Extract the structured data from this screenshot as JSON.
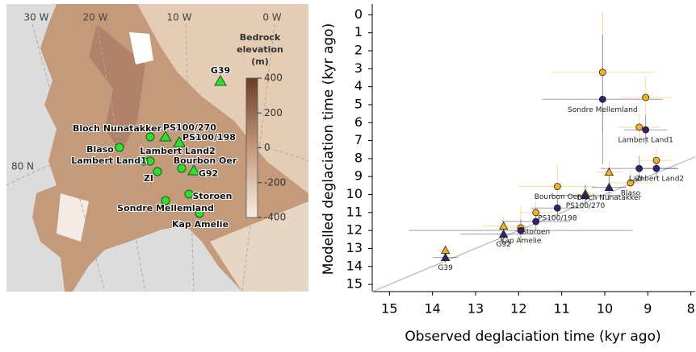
{
  "map": {
    "lon_labels": [
      "30 W",
      "20 W",
      "10 W",
      "0 W"
    ],
    "lat_label": "80 N",
    "colorbar": {
      "title": [
        "Bedrock",
        "elevation",
        "(m)"
      ],
      "lim": [
        -400,
        400
      ],
      "ticks": [
        400,
        200,
        0,
        -200,
        -400
      ]
    },
    "sites": [
      "G39",
      "Bloch Nunatakker",
      "PS100/270",
      "PS100/198",
      "Blaso",
      "Lambert Land2",
      "Lambert Land1",
      "Bourbon Oer",
      "G92",
      "ZI",
      "Storoen",
      "Sondre Mellemland",
      "Kap Amelie"
    ]
  },
  "chart_data": {
    "type": "scatter",
    "xlabel": "Observed deglaciation time (kyr ago)",
    "ylabel": "Modelled deglaciation time (kyr ago)",
    "xlim": [
      15.4,
      7.9
    ],
    "ylim": [
      15.4,
      -0.6
    ],
    "xticks": [
      15,
      14,
      13,
      12,
      11,
      10,
      9,
      8
    ],
    "yticks": [
      0,
      1,
      2,
      3,
      4,
      5,
      6,
      7,
      8,
      9,
      10,
      11,
      12,
      13,
      14,
      15
    ],
    "grid": false,
    "diagonal": true,
    "x": [
      13.7,
      12.35,
      11.95,
      11.6,
      11.1,
      11.1,
      10.45,
      9.9,
      9.4,
      8.8,
      9.2,
      9.05,
      10.05
    ],
    "point_labels": [
      "G39",
      "G92",
      "Kap Amelie",
      "Storoen",
      "Bourbon Oer",
      "PS100/198",
      "PS100/270",
      "Bloch Nunatakker",
      "Blaso",
      "Lambert Land2",
      "ZI",
      "Lambert Land1",
      "Sondre Mellemland"
    ],
    "markers": [
      "triangle",
      "triangle",
      "circle",
      "circle",
      "circle",
      "circle",
      "triangle",
      "triangle",
      "circle",
      "circle",
      "circle",
      "circle",
      "circle"
    ],
    "series": [
      {
        "color": "#f2b31c",
        "values": [
          13.1,
          11.75,
          11.85,
          11.0,
          9.55,
          null,
          9.95,
          8.75,
          9.35,
          8.1,
          6.25,
          4.6,
          3.2
        ],
        "xerr": [
          0.2,
          0.5,
          0.3,
          0.4,
          0.9,
          null,
          0.3,
          0.3,
          0.5,
          0.4,
          0.5,
          0.6,
          1.2
        ],
        "yerr": [
          0.3,
          0.6,
          1.2,
          0.6,
          1.2,
          null,
          0.5,
          0.6,
          0.7,
          0.7,
          1.0,
          1.2,
          3.4
        ]
      },
      {
        "color": "#35206e",
        "values": [
          13.5,
          12.2,
          12.0,
          11.5,
          null,
          10.75,
          10.05,
          9.6,
          null,
          8.55,
          8.55,
          6.4,
          4.7
        ],
        "xerr": [
          0.3,
          1.0,
          2.6,
          0.8,
          null,
          0.6,
          0.8,
          0.4,
          null,
          0.5,
          0.9,
          0.5,
          1.4
        ],
        "yerr": [
          0.3,
          0.5,
          0.6,
          0.5,
          null,
          0.5,
          0.6,
          0.7,
          null,
          0.6,
          0.7,
          0.8,
          3.6
        ]
      }
    ]
  }
}
